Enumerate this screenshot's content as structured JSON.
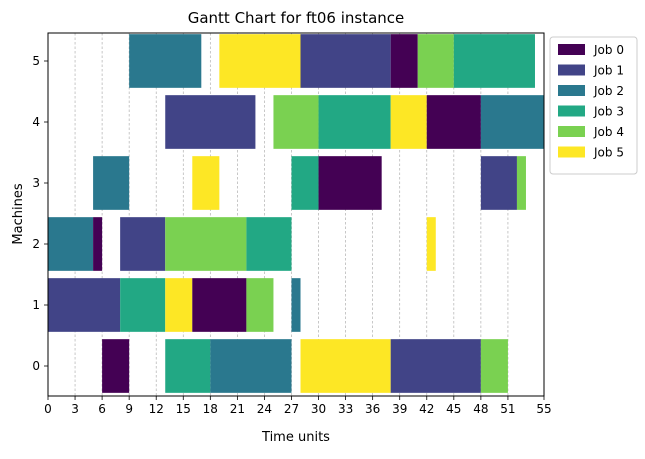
{
  "chart_data": {
    "type": "gantt",
    "title": "Gantt Chart for ft06 instance",
    "xlabel": "Time units",
    "ylabel": "Machines",
    "xlim": [
      0,
      55
    ],
    "x_ticks": [
      0,
      3,
      6,
      9,
      12,
      15,
      18,
      21,
      24,
      27,
      30,
      33,
      36,
      39,
      42,
      45,
      48,
      51,
      55
    ],
    "y_ticks": [
      0,
      1,
      2,
      3,
      4,
      5
    ],
    "grid": "vertical dashed",
    "legend_position": "outside upper-right",
    "series": [
      {
        "name": "Job 0",
        "color": "#440154"
      },
      {
        "name": "Job 1",
        "color": "#414487"
      },
      {
        "name": "Job 2",
        "color": "#2a788e"
      },
      {
        "name": "Job 3",
        "color": "#22a884"
      },
      {
        "name": "Job 4",
        "color": "#7ad151"
      },
      {
        "name": "Job 5",
        "color": "#fde725"
      }
    ],
    "tasks": [
      {
        "machine": 0,
        "job": 0,
        "start": 6,
        "end": 9
      },
      {
        "machine": 0,
        "job": 3,
        "start": 13,
        "end": 18
      },
      {
        "machine": 0,
        "job": 2,
        "start": 18,
        "end": 27
      },
      {
        "machine": 0,
        "job": 5,
        "start": 28,
        "end": 38
      },
      {
        "machine": 0,
        "job": 1,
        "start": 38,
        "end": 48
      },
      {
        "machine": 0,
        "job": 4,
        "start": 48,
        "end": 51
      },
      {
        "machine": 1,
        "job": 1,
        "start": 0,
        "end": 8
      },
      {
        "machine": 1,
        "job": 3,
        "start": 8,
        "end": 13
      },
      {
        "machine": 1,
        "job": 5,
        "start": 13,
        "end": 16
      },
      {
        "machine": 1,
        "job": 0,
        "start": 16,
        "end": 22
      },
      {
        "machine": 1,
        "job": 4,
        "start": 22,
        "end": 25
      },
      {
        "machine": 1,
        "job": 2,
        "start": 27,
        "end": 28
      },
      {
        "machine": 2,
        "job": 2,
        "start": 0,
        "end": 5
      },
      {
        "machine": 2,
        "job": 0,
        "start": 5,
        "end": 6
      },
      {
        "machine": 2,
        "job": 1,
        "start": 8,
        "end": 13
      },
      {
        "machine": 2,
        "job": 4,
        "start": 13,
        "end": 22
      },
      {
        "machine": 2,
        "job": 3,
        "start": 22,
        "end": 27
      },
      {
        "machine": 2,
        "job": 5,
        "start": 42,
        "end": 43
      },
      {
        "machine": 3,
        "job": 2,
        "start": 5,
        "end": 9
      },
      {
        "machine": 3,
        "job": 5,
        "start": 16,
        "end": 19
      },
      {
        "machine": 3,
        "job": 3,
        "start": 27,
        "end": 30
      },
      {
        "machine": 3,
        "job": 0,
        "start": 30,
        "end": 37
      },
      {
        "machine": 3,
        "job": 1,
        "start": 48,
        "end": 52
      },
      {
        "machine": 3,
        "job": 4,
        "start": 52,
        "end": 53
      },
      {
        "machine": 4,
        "job": 1,
        "start": 13,
        "end": 23
      },
      {
        "machine": 4,
        "job": 4,
        "start": 25,
        "end": 30
      },
      {
        "machine": 4,
        "job": 3,
        "start": 30,
        "end": 38
      },
      {
        "machine": 4,
        "job": 5,
        "start": 38,
        "end": 42
      },
      {
        "machine": 4,
        "job": 0,
        "start": 42,
        "end": 48
      },
      {
        "machine": 4,
        "job": 2,
        "start": 48,
        "end": 55
      },
      {
        "machine": 5,
        "job": 2,
        "start": 9,
        "end": 17
      },
      {
        "machine": 5,
        "job": 5,
        "start": 19,
        "end": 28
      },
      {
        "machine": 5,
        "job": 1,
        "start": 28,
        "end": 38
      },
      {
        "machine": 5,
        "job": 0,
        "start": 38,
        "end": 41
      },
      {
        "machine": 5,
        "job": 4,
        "start": 41,
        "end": 45
      },
      {
        "machine": 5,
        "job": 3,
        "start": 45,
        "end": 54
      }
    ]
  }
}
